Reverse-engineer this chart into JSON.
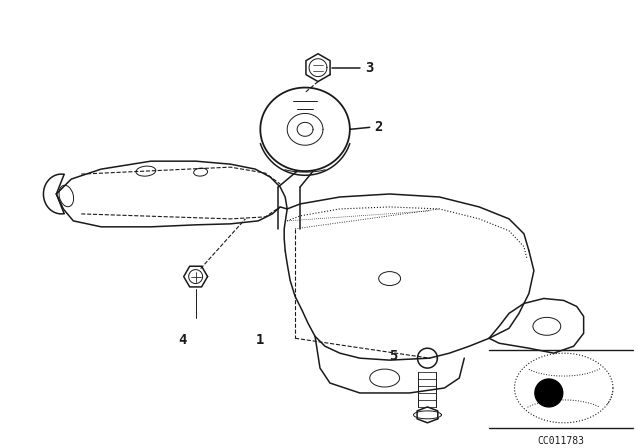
{
  "bg_color": "#ffffff",
  "line_color": "#1a1a1a",
  "diagram_code": "CC011783",
  "label_fontsize": 10,
  "code_fontsize": 7,
  "figsize": [
    6.4,
    4.48
  ],
  "dpi": 100
}
